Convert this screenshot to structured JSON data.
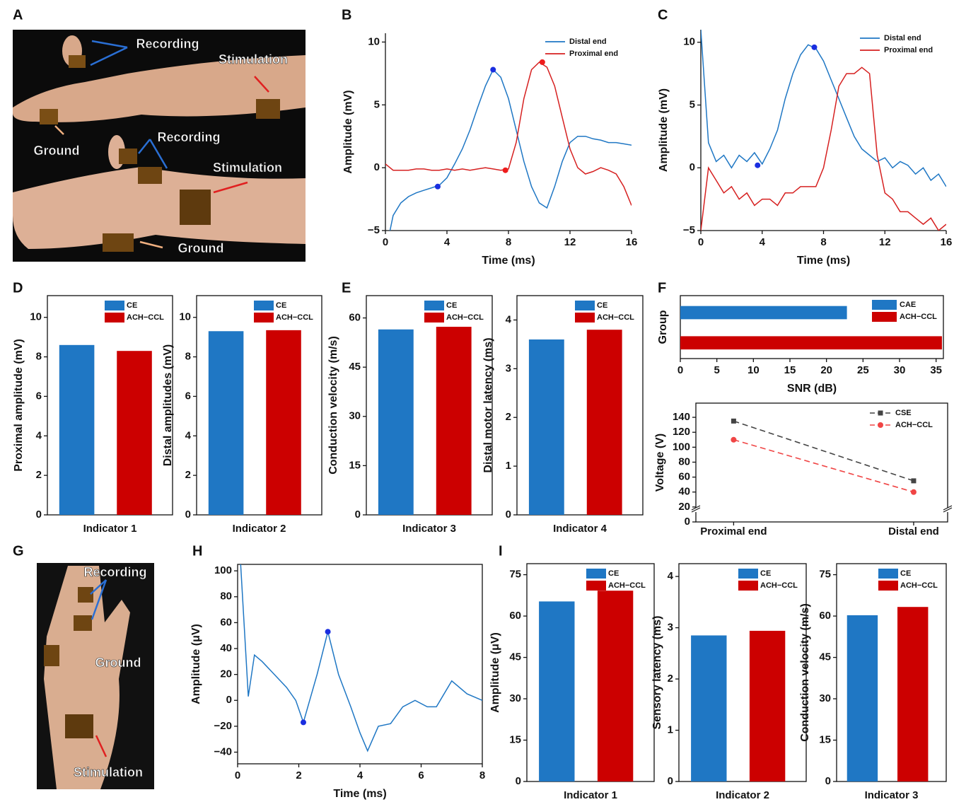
{
  "photos": [
    {
      "panel": "A",
      "labels": [
        "Recording",
        "Stimulation",
        "Ground",
        "Recording",
        "Stimulation",
        "Ground"
      ]
    },
    {
      "panel": "G",
      "labels": [
        "Recording",
        "Ground",
        "Stimulation"
      ]
    }
  ],
  "chart_data": [
    {
      "panel": "B",
      "type": "line",
      "xlabel": "Time (ms)",
      "ylabel": "Amplitude (mV)",
      "xlim": [
        0,
        16
      ],
      "xticks": [
        0,
        4,
        8,
        12,
        16
      ],
      "ylim": [
        -5,
        10.7
      ],
      "yticks": [
        {
          "value": -5,
          "label": "−5"
        },
        0,
        5,
        10
      ],
      "legend": "upper right",
      "series": [
        {
          "name": "Distal end",
          "color": "#1f77c4",
          "x": [
            0.3,
            0.5,
            1,
            1.5,
            2,
            2.5,
            3,
            3.5,
            4,
            4.5,
            5,
            5.5,
            6,
            6.5,
            7,
            7.5,
            8,
            8.5,
            9,
            9.5,
            10,
            10.5,
            11,
            11.5,
            12,
            12.5,
            13,
            13.5,
            14,
            14.5,
            15,
            15.5,
            16
          ],
          "values": [
            -5,
            -3.8,
            -2.8,
            -2.3,
            -2,
            -1.8,
            -1.6,
            -1.4,
            -0.8,
            0.3,
            1.5,
            3,
            4.8,
            6.5,
            7.8,
            7.2,
            5.5,
            3,
            0.5,
            -1.5,
            -2.8,
            -3.2,
            -1.5,
            0.5,
            2,
            2.5,
            2.5,
            2.3,
            2.2,
            2,
            2,
            1.9,
            1.8
          ],
          "markers": {
            "x": [
              3.4,
              7
            ],
            "values": [
              -1.5,
              7.8
            ]
          }
        },
        {
          "name": "Proximal end",
          "color": "#d62020",
          "x": [
            0,
            0.5,
            1,
            1.5,
            2,
            2.5,
            3,
            3.5,
            4,
            4.5,
            5,
            5.5,
            6,
            6.5,
            7,
            7.5,
            8,
            8.5,
            9,
            9.5,
            10,
            10.5,
            11,
            11.5,
            12,
            12.5,
            13,
            13.5,
            14,
            14.5,
            15,
            15.5,
            16
          ],
          "values": [
            0.3,
            -0.2,
            -0.2,
            -0.2,
            -0.1,
            -0.1,
            -0.2,
            -0.2,
            -0.1,
            -0.2,
            -0.1,
            -0.2,
            -0.1,
            0,
            -0.1,
            -0.2,
            -0.1,
            2,
            5.5,
            7.8,
            8.4,
            8,
            6.5,
            4,
            1.5,
            0,
            -0.5,
            -0.3,
            0,
            -0.2,
            -0.5,
            -1.5,
            -3
          ],
          "markers": {
            "x": [
              7.8,
              10.2
            ],
            "values": [
              -0.2,
              8.4
            ]
          }
        }
      ]
    },
    {
      "panel": "C",
      "type": "line",
      "xlabel": "Time (ms)",
      "ylabel": "Amplitude (mV)",
      "xlim": [
        0,
        16
      ],
      "xticks": [
        0,
        4,
        8,
        12,
        16
      ],
      "ylim": [
        -5,
        11
      ],
      "yticks": [
        {
          "value": -5,
          "label": "−5"
        },
        0,
        5,
        10
      ],
      "legend": "upper right",
      "series": [
        {
          "name": "Distal end",
          "color": "#1f77c4",
          "x": [
            0,
            0.5,
            1,
            1.5,
            2,
            2.5,
            3,
            3.5,
            4,
            4.5,
            5,
            5.5,
            6,
            6.5,
            7,
            7.5,
            8,
            8.5,
            9,
            9.5,
            10,
            10.5,
            11,
            11.5,
            12,
            12.5,
            13,
            13.5,
            14,
            14.5,
            15,
            15.5,
            16
          ],
          "values": [
            11,
            2,
            0.5,
            1,
            0,
            1,
            0.5,
            1.2,
            0.3,
            1.5,
            3,
            5.5,
            7.5,
            9,
            9.8,
            9.5,
            8.5,
            7,
            5.5,
            4,
            2.5,
            1.5,
            1,
            0.5,
            0.8,
            0,
            0.5,
            0.2,
            -0.5,
            0,
            -1,
            -0.5,
            -1.5
          ],
          "markers": {
            "x": [
              3.7,
              7.4
            ],
            "values": [
              0.2,
              9.6
            ]
          }
        },
        {
          "name": "Proximal end",
          "color": "#d62020",
          "x": [
            0,
            0.5,
            1,
            1.5,
            2,
            2.5,
            3,
            3.5,
            4,
            4.5,
            5,
            5.5,
            6,
            6.5,
            7,
            7.5,
            8,
            8.5,
            9,
            9.5,
            10,
            10.5,
            11,
            11.5,
            12,
            12.5,
            13,
            13.5,
            14,
            14.5,
            15,
            15.5,
            16
          ],
          "values": [
            -5,
            0,
            -1,
            -2,
            -1.5,
            -2.5,
            -2,
            -3,
            -2.5,
            -2.5,
            -3,
            -2,
            -2,
            -1.5,
            -1.5,
            -1.5,
            0,
            3,
            6.5,
            7.5,
            7.5,
            8,
            7.5,
            1,
            -2,
            -2.5,
            -3.5,
            -3.5,
            -4,
            -4.5,
            -4,
            -5,
            -4.5
          ]
        }
      ]
    },
    {
      "panel": "D",
      "type": "bar",
      "ylabel": "Proximal amplitude (mV)",
      "categories": [
        "Indicator 1"
      ],
      "ylim": [
        0,
        11.1
      ],
      "yticks": [
        0,
        2,
        4,
        6,
        8,
        10
      ],
      "series": [
        {
          "name": "CE",
          "color": "#1f77c4",
          "values": [
            8.6
          ]
        },
        {
          "name": "ACH−CCL",
          "color": "#cc0000",
          "values": [
            8.3
          ]
        }
      ]
    },
    {
      "type": "bar",
      "ylabel": "Distal amplitudes (mV)",
      "categories": [
        "Indicator 2"
      ],
      "ylim": [
        0,
        11.1
      ],
      "yticks": [
        0,
        2,
        4,
        6,
        8,
        10
      ],
      "series": [
        {
          "name": "CE",
          "color": "#1f77c4",
          "values": [
            9.3
          ]
        },
        {
          "name": "ACH−CCL",
          "color": "#cc0000",
          "values": [
            9.35
          ]
        }
      ]
    },
    {
      "panel": "E",
      "type": "bar",
      "ylabel": "Conduction velocity (m/s)",
      "categories": [
        "Indicator 3"
      ],
      "ylim": [
        0,
        66.8
      ],
      "yticks": [
        0,
        15,
        30,
        45,
        60
      ],
      "series": [
        {
          "name": "CE",
          "color": "#1f77c4",
          "values": [
            56.5
          ]
        },
        {
          "name": "ACH−CCL",
          "color": "#cc0000",
          "values": [
            57.3
          ]
        }
      ]
    },
    {
      "type": "bar",
      "ylabel": "Distal motor latency (ms)",
      "categories": [
        "Indicator 4"
      ],
      "ylim": [
        0,
        4.5
      ],
      "yticks": [
        0,
        1,
        2,
        3,
        4
      ],
      "series": [
        {
          "name": "CE",
          "color": "#1f77c4",
          "values": [
            3.6
          ]
        },
        {
          "name": "ACH−CCL",
          "color": "#cc0000",
          "values": [
            3.8
          ]
        }
      ]
    },
    {
      "panel": "F",
      "type": "hbar",
      "xlabel": "SNR (dB)",
      "ylabel": "Group",
      "xlim": [
        0,
        36
      ],
      "xticks": [
        0,
        5,
        10,
        15,
        20,
        25,
        30,
        35
      ],
      "series": [
        {
          "name": "CAE",
          "color": "#1f77c4",
          "values": [
            22.8
          ]
        },
        {
          "name": "ACH−CCL",
          "color": "#cc0000",
          "values": [
            35.8
          ]
        }
      ]
    },
    {
      "type": "catline",
      "ylabel": "Voltage (V)",
      "categories": [
        "Proximal end",
        "Distal end"
      ],
      "ylim": [
        0,
        159
      ],
      "yticks": [
        0,
        20,
        40,
        60,
        80,
        100,
        120,
        140
      ],
      "series": [
        {
          "name": "CSE",
          "color": "#444444",
          "marker": "square",
          "values": [
            135,
            55
          ]
        },
        {
          "name": "ACH−CCL",
          "color": "#f04545",
          "marker": "circle",
          "values": [
            110,
            40
          ]
        }
      ]
    },
    {
      "panel": "H",
      "type": "line",
      "xlabel": "Time (ms)",
      "ylabel": "Amplitude (μV)",
      "xlim": [
        0,
        8
      ],
      "xticks": [
        0,
        2,
        4,
        6,
        8
      ],
      "ylim": [
        -49,
        105
      ],
      "yticks": [
        {
          "value": -40,
          "label": "−40"
        },
        {
          "value": -20,
          "label": "−20"
        },
        0,
        20,
        40,
        60,
        80,
        100
      ],
      "series": [
        {
          "color": "#1f77c4",
          "x": [
            0.1,
            0.35,
            0.55,
            0.8,
            1.2,
            1.6,
            1.9,
            2.15,
            2.6,
            2.95,
            3.3,
            3.7,
            4,
            4.25,
            4.6,
            5,
            5.4,
            5.8,
            6.2,
            6.5,
            7,
            7.5,
            8
          ],
          "values": [
            105,
            3,
            35,
            30,
            20,
            10,
            0,
            -17,
            20,
            53,
            20,
            -5,
            -25,
            -39,
            -20,
            -18,
            -5,
            0,
            -5,
            -5,
            15,
            5,
            0
          ],
          "markers": {
            "x": [
              2.15,
              2.95
            ],
            "values": [
              -17,
              53
            ]
          }
        }
      ]
    },
    {
      "panel": "I",
      "type": "bar",
      "ylabel": "Amplitude (μV)",
      "categories": [
        "Indicator 1"
      ],
      "ylim": [
        0,
        79
      ],
      "yticks": [
        0,
        15,
        30,
        45,
        60,
        75
      ],
      "series": [
        {
          "name": "CE",
          "color": "#1f77c4",
          "values": [
            65.3
          ]
        },
        {
          "name": "ACH−CCL",
          "color": "#cc0000",
          "values": [
            69.2
          ]
        }
      ]
    },
    {
      "type": "bar",
      "ylabel": "Sensory latency (ms)",
      "categories": [
        "Indicator 2"
      ],
      "ylim": [
        0,
        4.25
      ],
      "yticks": [
        0,
        1,
        2,
        3,
        4
      ],
      "series": [
        {
          "name": "CE",
          "color": "#1f77c4",
          "values": [
            2.85
          ]
        },
        {
          "name": "ACH−CCL",
          "color": "#cc0000",
          "values": [
            2.94
          ]
        }
      ]
    },
    {
      "type": "bar",
      "ylabel": "Conduction velocity (m/s)",
      "categories": [
        "Indicator 3"
      ],
      "ylim": [
        0,
        79
      ],
      "yticks": [
        0,
        15,
        30,
        45,
        60,
        75
      ],
      "series": [
        {
          "name": "CE",
          "color": "#1f77c4",
          "values": [
            60.3
          ]
        },
        {
          "name": "ACH−CCL",
          "color": "#cc0000",
          "values": [
            63.3
          ]
        }
      ]
    }
  ]
}
